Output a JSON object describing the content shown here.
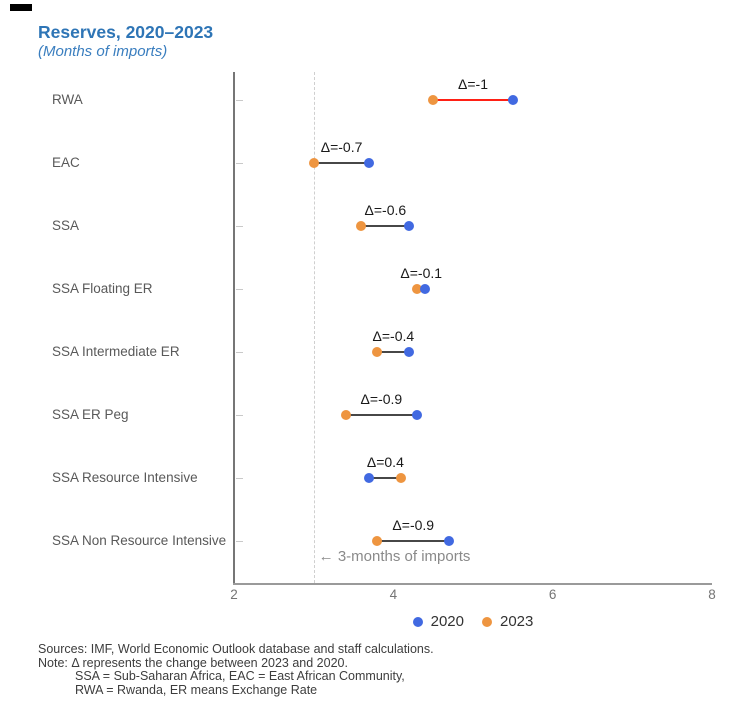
{
  "page": {
    "title": "Reserves, 2020–2023",
    "subtitle": "(Months of imports)"
  },
  "chart_data": {
    "type": "scatter",
    "subtype": "dumbbell",
    "title": "Reserves, 2020–2023",
    "subtitle": "(Months of imports)",
    "categories": [
      "RWA",
      "EAC",
      "SSA",
      "SSA Floating ER",
      "SSA Intermediate ER",
      "SSA ER Peg",
      "SSA Resource Intensive",
      "SSA Non Resource Intensive"
    ],
    "series": [
      {
        "name": "2020",
        "color": "#4169E1",
        "values": [
          5.5,
          3.7,
          4.2,
          4.4,
          4.2,
          4.3,
          3.7,
          4.7
        ]
      },
      {
        "name": "2023",
        "color": "#EE9540",
        "values": [
          4.5,
          3.0,
          3.6,
          4.3,
          3.8,
          3.4,
          4.1,
          3.8
        ]
      }
    ],
    "deltas": [
      -1,
      -0.7,
      -0.6,
      -0.1,
      -0.4,
      -0.9,
      0.4,
      -0.9
    ],
    "delta_labels": [
      "Δ=-1",
      "Δ=-0.7",
      "Δ=-0.6",
      "Δ=-0.1",
      "Δ=-0.4",
      "Δ=-0.9",
      "Δ=0.4",
      "Δ=-0.9"
    ],
    "connector_colors": [
      "#ff2015",
      "#474747",
      "#474747",
      "#474747",
      "#474747",
      "#474747",
      "#474747",
      "#474747"
    ],
    "xlabel": "",
    "ylabel": "",
    "xlim": [
      2,
      8
    ],
    "x_ticks": [
      "2",
      "4",
      "6",
      "8"
    ],
    "grid": "off",
    "reference_line": {
      "x": 3,
      "label": "← 3-months of imports"
    },
    "legend": [
      {
        "label": "2020",
        "color": "#4169E1"
      },
      {
        "label": "2023",
        "color": "#EE9540"
      }
    ],
    "legend_position": "bottom-center"
  },
  "footer": {
    "line1": "Sources: IMF, World Economic Outlook database and staff calculations.",
    "line2": "Note: Δ represents the change between 2023 and 2020.",
    "line3": "SSA = Sub-Saharan Africa, EAC = East African Community,",
    "line4": "RWA = Rwanda, ER means Exchange Rate"
  },
  "colors": {
    "title_blue": "#2E75B6",
    "series_2020_blue": "#4169E1",
    "series_2023_orange": "#EE9540",
    "rwa_connector_red": "#ff2015",
    "axis_gray": "#767676",
    "reference_dash_gray": "#cfcfcf",
    "annotation_gray": "#8a8a8a"
  }
}
